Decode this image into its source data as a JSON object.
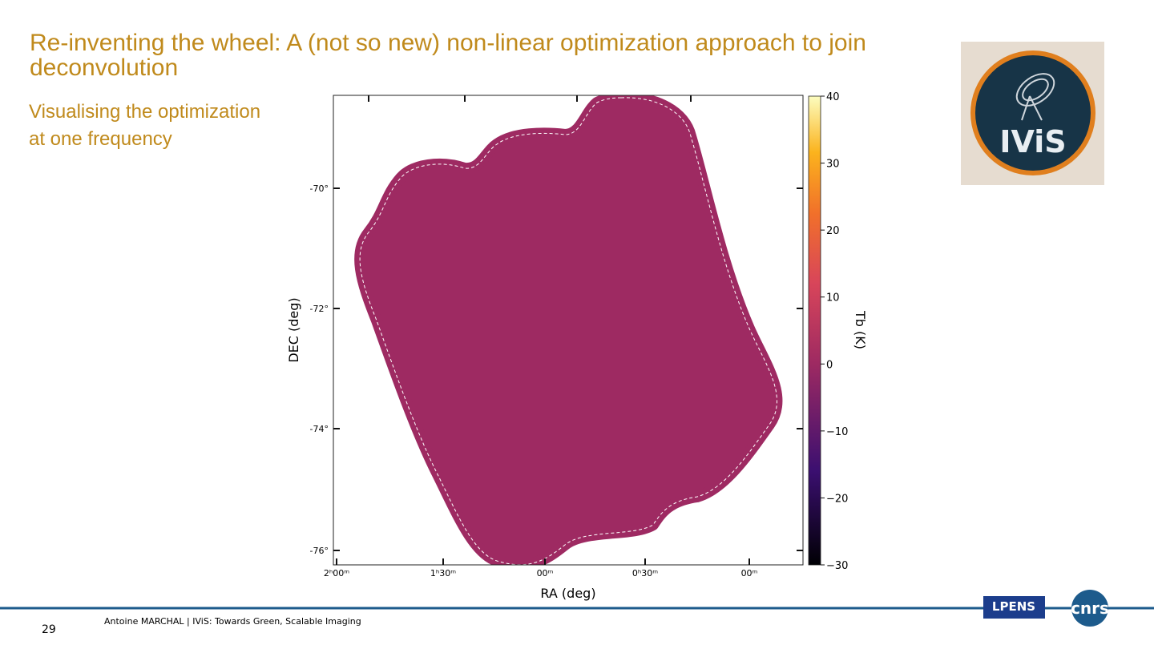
{
  "header": {
    "title": "Re-inventing the wheel: A (not so new) non-linear optimization approach to join deconvolution",
    "subtitle_lines": [
      "Visualising the optimization",
      "at one frequency"
    ]
  },
  "figure": {
    "x_label": "RA (deg)",
    "y_label": "DEC (deg)",
    "y_tick_labels": [
      "-70°",
      "-72°",
      "-74°",
      "-76°"
    ],
    "x_tick_labels": [
      "2ʰ00ᵐ",
      "1ʰ30ᵐ",
      "00ᵐ",
      "0ʰ30ᵐ",
      "00ᵐ"
    ],
    "colorbar": {
      "label": "Tb (K)",
      "lim": [
        -30,
        40
      ],
      "ticks": [
        40,
        30,
        20,
        10,
        0,
        {
          "value": -10,
          "label": "−10"
        },
        {
          "value": -20,
          "label": "−20"
        },
        {
          "value": -30,
          "label": "−30"
        }
      ]
    }
  },
  "logos": [
    "IViS",
    "LPENS",
    "cnrs"
  ],
  "footer": {
    "page_number": "29",
    "text": "Antoine MARCHAL   | IViS: Towards Green, Scalable Imaging"
  }
}
